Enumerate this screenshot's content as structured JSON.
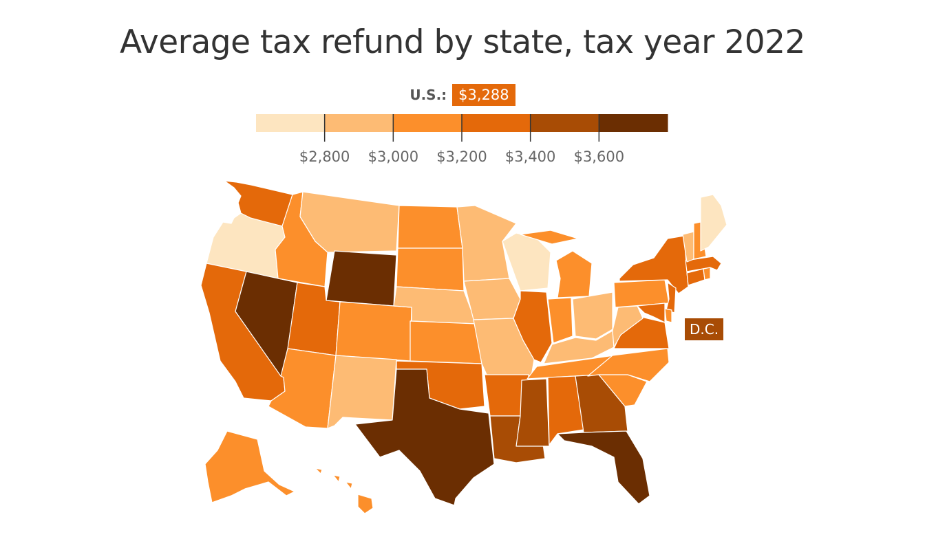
{
  "title": "Average tax refund by state, tax year 2022",
  "us": {
    "label": "U.S.:",
    "value": "$3,288"
  },
  "legend": {
    "bins": [
      "#fde5c0",
      "#fdbb74",
      "#fc8f2b",
      "#e4690a",
      "#a84c05",
      "#6b2e02"
    ],
    "ticks": [
      "$2,800",
      "$3,000",
      "$3,200",
      "$3,400",
      "$3,600"
    ]
  },
  "dc": {
    "label": "D.C.",
    "bin": 4
  },
  "chart_data": {
    "type": "choropleth",
    "title": "Average tax refund by state, tax year 2022",
    "national_average": "$3,288",
    "legend_thresholds": [
      2800,
      3000,
      3200,
      3400,
      3600
    ],
    "states": [
      {
        "state": "WA",
        "bin": 3
      },
      {
        "state": "OR",
        "bin": 0
      },
      {
        "state": "CA",
        "bin": 3
      },
      {
        "state": "NV",
        "bin": 5
      },
      {
        "state": "ID",
        "bin": 2
      },
      {
        "state": "MT",
        "bin": 1
      },
      {
        "state": "WY",
        "bin": 5
      },
      {
        "state": "UT",
        "bin": 3
      },
      {
        "state": "AZ",
        "bin": 2
      },
      {
        "state": "CO",
        "bin": 2
      },
      {
        "state": "NM",
        "bin": 1
      },
      {
        "state": "ND",
        "bin": 2
      },
      {
        "state": "SD",
        "bin": 2
      },
      {
        "state": "NE",
        "bin": 1
      },
      {
        "state": "KS",
        "bin": 2
      },
      {
        "state": "OK",
        "bin": 3
      },
      {
        "state": "TX",
        "bin": 5
      },
      {
        "state": "MN",
        "bin": 1
      },
      {
        "state": "IA",
        "bin": 1
      },
      {
        "state": "MO",
        "bin": 1
      },
      {
        "state": "AR",
        "bin": 3
      },
      {
        "state": "LA",
        "bin": 4
      },
      {
        "state": "WI",
        "bin": 0
      },
      {
        "state": "IL",
        "bin": 3
      },
      {
        "state": "MI",
        "bin": 2
      },
      {
        "state": "IN",
        "bin": 2
      },
      {
        "state": "OH",
        "bin": 1
      },
      {
        "state": "KY",
        "bin": 1
      },
      {
        "state": "TN",
        "bin": 2
      },
      {
        "state": "MS",
        "bin": 4
      },
      {
        "state": "AL",
        "bin": 3
      },
      {
        "state": "GA",
        "bin": 4
      },
      {
        "state": "FL",
        "bin": 5
      },
      {
        "state": "SC",
        "bin": 2
      },
      {
        "state": "NC",
        "bin": 2
      },
      {
        "state": "VA",
        "bin": 3
      },
      {
        "state": "WV",
        "bin": 1
      },
      {
        "state": "PA",
        "bin": 2
      },
      {
        "state": "NY",
        "bin": 3
      },
      {
        "state": "NJ",
        "bin": 3
      },
      {
        "state": "DE",
        "bin": 2
      },
      {
        "state": "MD",
        "bin": 3
      },
      {
        "state": "CT",
        "bin": 3
      },
      {
        "state": "RI",
        "bin": 2
      },
      {
        "state": "MA",
        "bin": 3
      },
      {
        "state": "VT",
        "bin": 1
      },
      {
        "state": "NH",
        "bin": 2
      },
      {
        "state": "ME",
        "bin": 0
      },
      {
        "state": "AK",
        "bin": 2
      },
      {
        "state": "HI",
        "bin": 2
      },
      {
        "state": "DC",
        "bin": 4
      }
    ]
  }
}
